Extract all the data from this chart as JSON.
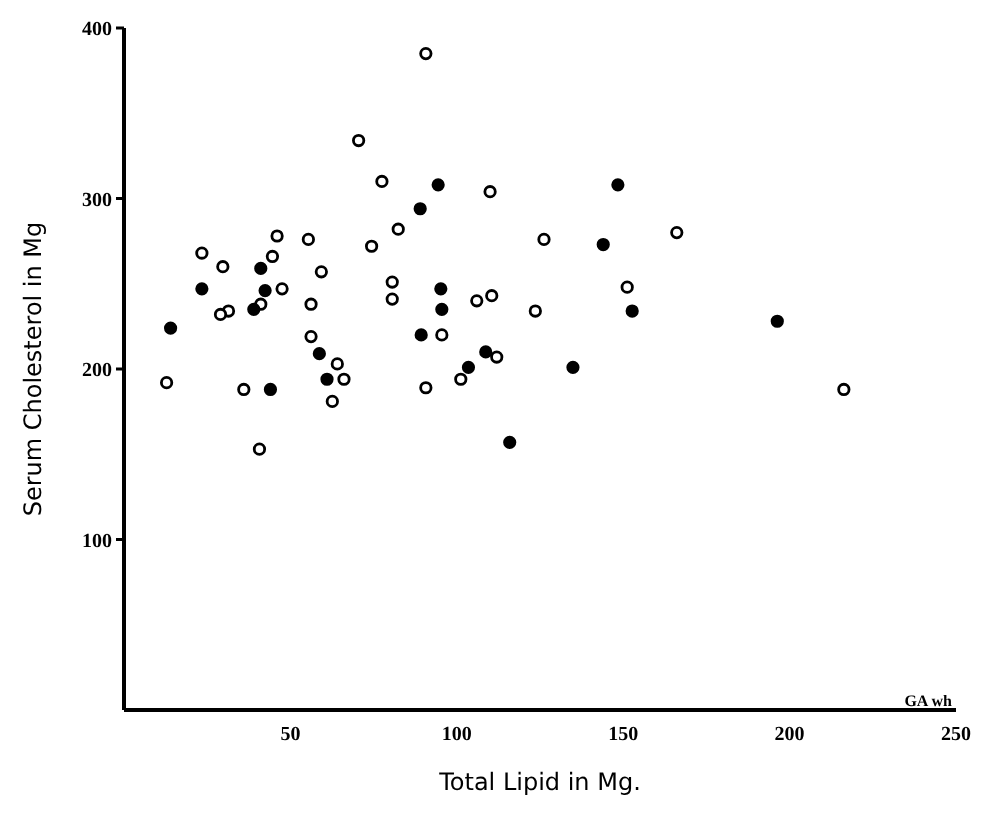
{
  "chart_data": {
    "type": "scatter",
    "xlabel": "Total Lipid in Mg.",
    "ylabel": "Serum Cholesterol in Mg",
    "xlim": [
      0,
      250
    ],
    "xticks": [
      50,
      100,
      150,
      200,
      250
    ],
    "ylim": [
      0,
      400
    ],
    "yticks": [
      100,
      200,
      300,
      400
    ],
    "grid": false,
    "legend": false,
    "marker": "circle",
    "annotations": [
      "GA wh"
    ],
    "series": [
      {
        "color": "#000000",
        "x": [
          90.7,
          70.5,
          77.5,
          110,
          82.4,
          74.4,
          46,
          55.4,
          23.4,
          44.6,
          29.7,
          59.3,
          80.6,
          47.5,
          80.6,
          110.5,
          106,
          56.2,
          41.1,
          31.4,
          29,
          56.2,
          95.5,
          112,
          64.1,
          66.1,
          101.2,
          12.8,
          36,
          90.7,
          62.6,
          40.7,
          126.2,
          166.1,
          123.6,
          151.2,
          216.3
        ],
        "values": [
          385,
          334,
          310,
          304,
          282,
          272,
          278,
          276,
          268,
          266,
          260,
          257,
          251,
          247,
          241,
          243,
          240,
          238,
          238,
          234,
          232,
          219,
          220,
          207,
          203,
          194,
          194,
          192,
          188,
          189,
          181,
          153,
          276,
          280,
          234,
          248,
          188
        ]
      },
      {
        "color": "#000000",
        "x": [
          94.4,
          89,
          41.1,
          23.4,
          42.4,
          95.2,
          39,
          95.5,
          14,
          89.3,
          58.7,
          108.7,
          103.5,
          61,
          44,
          115.9,
          148.4,
          144,
          152.7,
          196.3,
          134.9
        ],
        "values": [
          308,
          294,
          259,
          247,
          246,
          247,
          235,
          235,
          224,
          220,
          209,
          210,
          201,
          194,
          188,
          157,
          308,
          273,
          234,
          228,
          201
        ]
      }
    ]
  }
}
